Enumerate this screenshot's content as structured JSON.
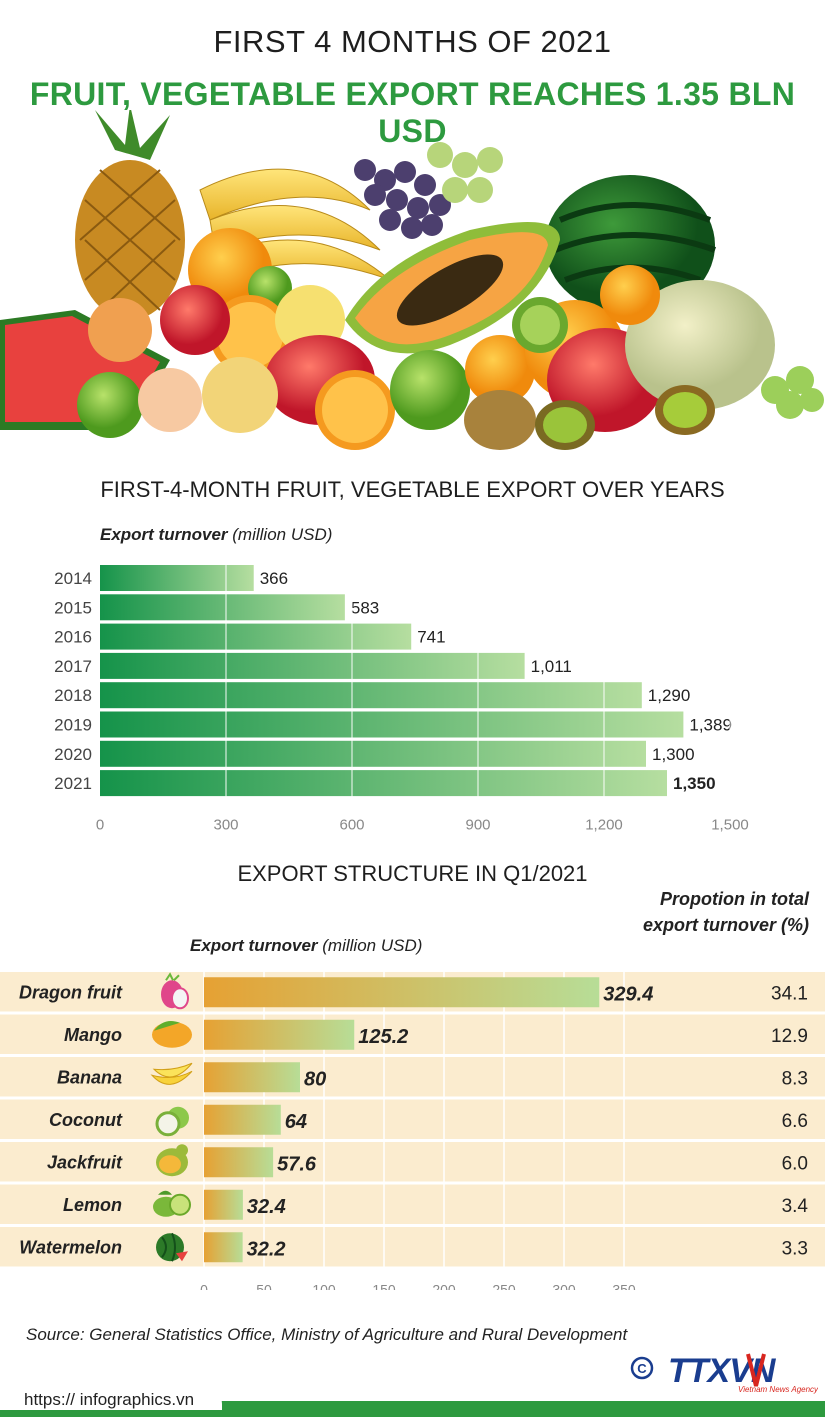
{
  "header": {
    "line1": "FIRST 4 MONTHS OF 2021",
    "line2": "FRUIT, VEGETABLE EXPORT REACHES 1.35 BLN USD"
  },
  "section1": {
    "title": "FIRST-4-MONTH FRUIT, VEGETABLE EXPORT OVER YEARS",
    "caption_bold": "Export turnover",
    "caption_unit": "(million USD)"
  },
  "section2": {
    "title": "EXPORT STRUCTURE IN Q1/2021",
    "caption_bold": "Export turnover",
    "caption_unit": "(million USD)",
    "prop_line1": "Propotion in total",
    "prop_line2": "export turnover (%)"
  },
  "colors": {
    "brand_green": "#2d9a3f",
    "bar_green_dark": "#15934a",
    "bar_green_light": "#b6dea0",
    "bar_orange": "#e6a133",
    "bar_lightgreen": "#b7dd97",
    "row_bg": "#fbeccf"
  },
  "chart_data": [
    {
      "type": "bar",
      "orientation": "horizontal",
      "title": "FIRST-4-MONTH FRUIT, VEGETABLE EXPORT OVER YEARS",
      "xlabel": "Export turnover (million USD)",
      "categories": [
        "2014",
        "2015",
        "2016",
        "2017",
        "2018",
        "2019",
        "2020",
        "2021"
      ],
      "values": [
        366,
        583,
        741,
        1011,
        1290,
        1389,
        1300,
        1350
      ],
      "value_labels": [
        "366",
        "583",
        "741",
        "1,011",
        "1,290",
        "1,389",
        "1,300",
        "1,350"
      ],
      "highlight_index": 7,
      "xlim": [
        0,
        1500
      ],
      "xticks": [
        0,
        300,
        600,
        900,
        1200,
        1500
      ],
      "xtick_labels": [
        "0",
        "300",
        "600",
        "900",
        "1,200",
        "1,500"
      ],
      "grid": true
    },
    {
      "type": "bar",
      "orientation": "horizontal",
      "title": "EXPORT STRUCTURE IN Q1/2021",
      "xlabel": "Export turnover (million USD)",
      "categories": [
        "Dragon fruit",
        "Mango",
        "Banana",
        "Coconut",
        "Jackfruit",
        "Lemon",
        "Watermelon"
      ],
      "values": [
        329.4,
        125.2,
        80,
        64,
        57.6,
        32.4,
        32.2
      ],
      "value_labels": [
        "329.4",
        "125.2",
        "80",
        "64",
        "57.6",
        "32.4",
        "32.2"
      ],
      "share_percent": [
        "34.1",
        "12.9",
        "8.3",
        "6.6",
        "6.0",
        "3.4",
        "3.3"
      ],
      "icons": [
        "dragon-fruit-icon",
        "mango-icon",
        "banana-icon",
        "coconut-icon",
        "jackfruit-icon",
        "lemon-icon",
        "watermelon-icon"
      ],
      "xlim": [
        0,
        350
      ],
      "xticks": [
        0,
        50,
        100,
        150,
        200,
        250,
        300,
        350
      ],
      "grid": true
    }
  ],
  "footer": {
    "source": "Source: General Statistics Office, Ministry of Agriculture and Rural Development",
    "url": "https:// infographics.vn",
    "copyright": "©",
    "logo_text": "TTXVN",
    "logo_subtitle": "Vietnam News Agency"
  }
}
